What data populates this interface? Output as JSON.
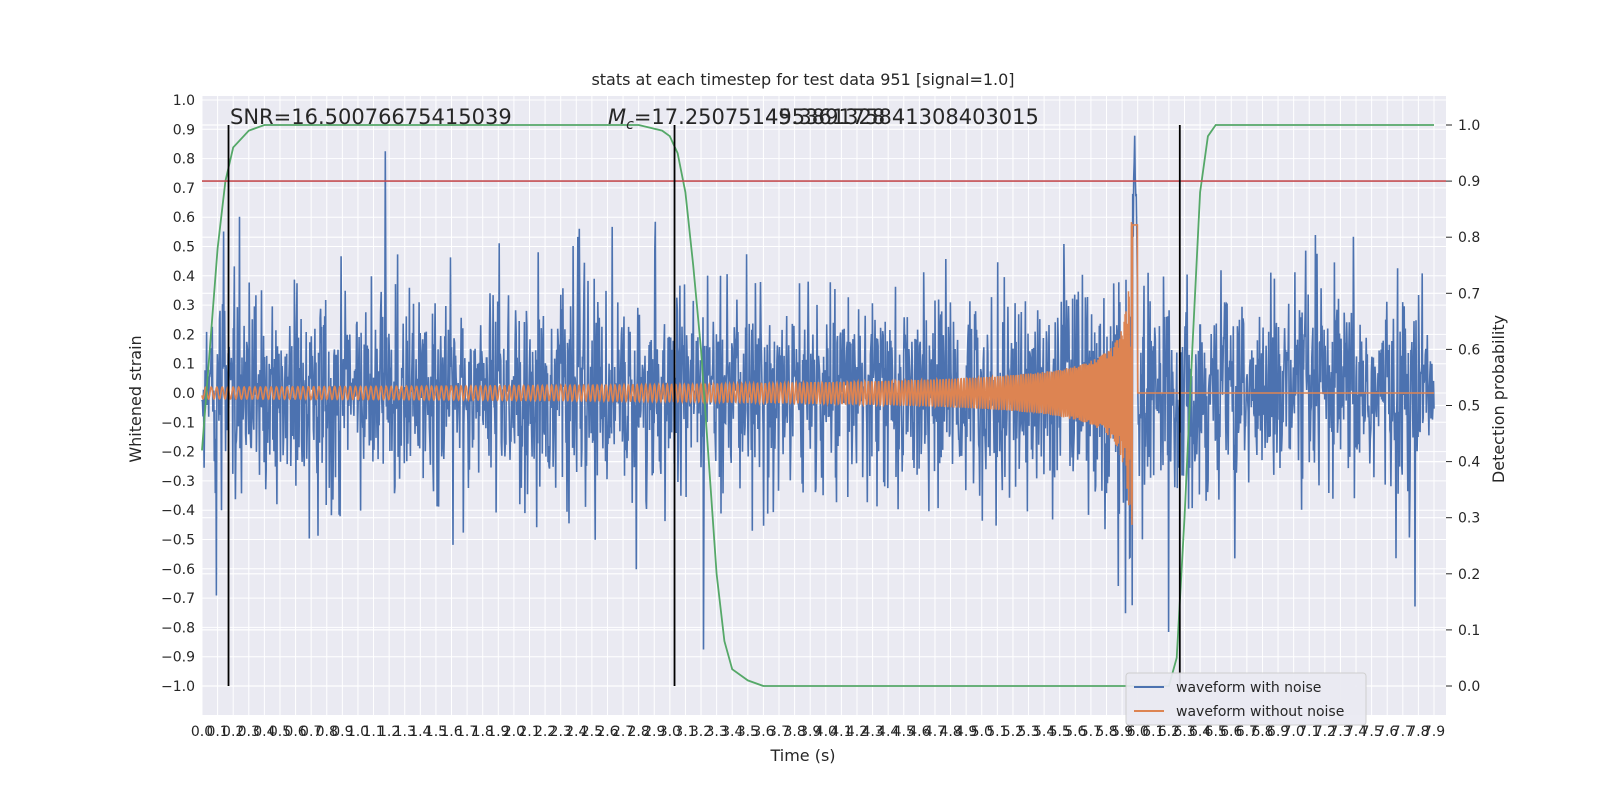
{
  "chart_data": {
    "type": "line",
    "title": "stats at each timestep for test data 951 [signal=1.0]",
    "xlabel": "Time (s)",
    "ylabel": "Whitened strain",
    "ylabel_right": "Detection probability",
    "xlim": [
      0.0,
      7.9
    ],
    "ylim": [
      -1.0,
      1.0
    ],
    "ylim_right": [
      0.0,
      1.0
    ],
    "x_ticks": [
      "0.0",
      "0.1",
      "0.2",
      "0.3",
      "0.4",
      "0.5",
      "0.6",
      "0.7",
      "0.8",
      "0.9",
      "1.0",
      "1.1",
      "1.2",
      "1.3",
      "1.4",
      "1.5",
      "1.6",
      "1.7",
      "1.8",
      "1.9",
      "2.0",
      "2.1",
      "2.2",
      "2.3",
      "2.4",
      "2.5",
      "2.6",
      "2.7",
      "2.8",
      "2.9",
      "3.0",
      "3.1",
      "3.2",
      "3.3",
      "3.4",
      "3.5",
      "3.6",
      "3.7",
      "3.8",
      "3.9",
      "4.0",
      "4.1",
      "4.2",
      "4.3",
      "4.4",
      "4.5",
      "4.6",
      "4.7",
      "4.8",
      "4.9",
      "5.0",
      "5.1",
      "5.2",
      "5.3",
      "5.4",
      "5.5",
      "5.6",
      "5.7",
      "5.8",
      "5.9",
      "6.0",
      "6.1",
      "6.2",
      "6.3",
      "6.4",
      "6.5",
      "6.6",
      "6.7",
      "6.8",
      "6.9",
      "7.0",
      "7.1",
      "7.2",
      "7.3",
      "7.4",
      "7.5",
      "7.6",
      "7.7",
      "7.8",
      "7.9"
    ],
    "y_ticks_left": [
      "1.0",
      "0.9",
      "0.8",
      "0.7",
      "0.6",
      "0.5",
      "0.4",
      "0.3",
      "0.2",
      "0.1",
      "0.0",
      "−0.1",
      "−0.2",
      "−0.3",
      "−0.4",
      "−0.5",
      "−0.6",
      "−0.7",
      "−0.8",
      "−0.9",
      "−1.0"
    ],
    "y_ticks_right": [
      "1.0",
      "0.9",
      "0.8",
      "0.7",
      "0.6",
      "0.5",
      "0.4",
      "0.3",
      "0.2",
      "0.1",
      "0.0"
    ],
    "annotations": {
      "snr": "SNR=16.50076675415039",
      "mc_prefix": "M",
      "mc_sub": "c",
      "mc_value": "=17.250751495361328",
      "overlap_value": "45.389175841308403015"
    },
    "series": [
      {
        "name": "waveform with noise",
        "color": "#4c72b0",
        "amplitude_typical": 0.45,
        "amplitude_peak": 0.92
      },
      {
        "name": "waveform without noise",
        "color": "#dd8452",
        "start_amplitude": 0.02,
        "merger_time": 5.95,
        "peak_amplitude": 0.6,
        "end_time": 6.0
      },
      {
        "name": "detection probability",
        "color": "#55a868",
        "rises": [
          0.0,
          0.18,
          6.25
        ],
        "falls": [
          3.05
        ],
        "prob_points": [
          [
            0.0,
            0.42
          ],
          [
            0.05,
            0.6
          ],
          [
            0.1,
            0.78
          ],
          [
            0.15,
            0.9
          ],
          [
            0.2,
            0.96
          ],
          [
            0.3,
            0.99
          ],
          [
            0.4,
            1.0
          ],
          [
            2.8,
            1.0
          ],
          [
            2.95,
            0.99
          ],
          [
            3.0,
            0.98
          ],
          [
            3.05,
            0.95
          ],
          [
            3.1,
            0.88
          ],
          [
            3.15,
            0.75
          ],
          [
            3.2,
            0.6
          ],
          [
            3.25,
            0.4
          ],
          [
            3.3,
            0.2
          ],
          [
            3.35,
            0.08
          ],
          [
            3.4,
            0.03
          ],
          [
            3.5,
            0.01
          ],
          [
            3.6,
            0.0
          ],
          [
            6.2,
            0.0
          ],
          [
            6.25,
            0.05
          ],
          [
            6.3,
            0.3
          ],
          [
            6.35,
            0.6
          ],
          [
            6.4,
            0.88
          ],
          [
            6.45,
            0.98
          ],
          [
            6.5,
            1.0
          ],
          [
            7.9,
            1.0
          ]
        ]
      },
      {
        "name": "threshold",
        "color": "#c44e52",
        "value": 0.9
      }
    ],
    "vertical_markers": [
      0.17,
      3.03,
      6.27
    ],
    "legend": {
      "position": "bottom-right",
      "entries": [
        "waveform with noise",
        "waveform without noise"
      ]
    },
    "grid": true
  }
}
